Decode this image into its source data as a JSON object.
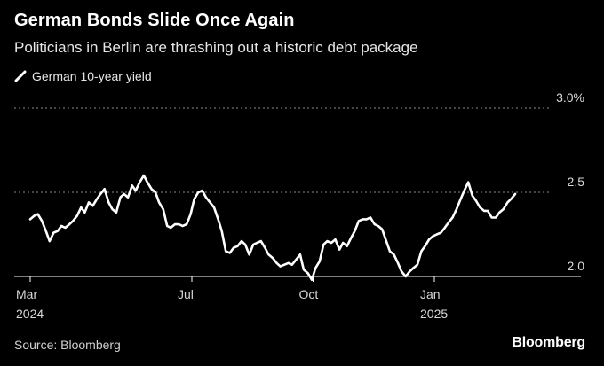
{
  "header": {
    "title": "German Bonds Slide Once Again",
    "subtitle": "Politicians in Berlin are thrashing out a historic debt package"
  },
  "footer": {
    "source": "Source: Bloomberg",
    "brand": "Bloomberg"
  },
  "colors": {
    "background": "#000000",
    "line": "#ffffff",
    "grid": "#8a8a8a"
  },
  "chart_data": {
    "type": "line",
    "title": "German Bonds Slide Once Again",
    "subtitle": "Politicians in Berlin are thrashing out a historic debt package",
    "xlabel": "",
    "ylabel": "",
    "ylim": [
      2.0,
      3.0
    ],
    "xlim": [
      0,
      12.8
    ],
    "grid": true,
    "legend_position": "top-left",
    "y_ticks": [
      {
        "value": 3.0,
        "label": "3.0%"
      },
      {
        "value": 2.5,
        "label": "2.5"
      },
      {
        "value": 2.0,
        "label": "2.0"
      }
    ],
    "x_ticks": [
      {
        "value": 0,
        "label": "Mar",
        "year": "2024"
      },
      {
        "value": 4,
        "label": "Jul",
        "year": ""
      },
      {
        "value": 7,
        "label": "Oct",
        "year": ""
      },
      {
        "value": 10,
        "label": "Jan",
        "year": "2025"
      }
    ],
    "series": [
      {
        "name": "German 10-year yield",
        "x": [
          0.0,
          0.1,
          0.19,
          0.29,
          0.39,
          0.48,
          0.58,
          0.68,
          0.77,
          0.87,
          0.97,
          1.06,
          1.16,
          1.26,
          1.35,
          1.45,
          1.55,
          1.65,
          1.74,
          1.84,
          1.94,
          2.03,
          2.13,
          2.23,
          2.32,
          2.42,
          2.52,
          2.61,
          2.71,
          2.81,
          2.9,
          3.0,
          3.1,
          3.19,
          3.29,
          3.39,
          3.48,
          3.58,
          3.68,
          3.77,
          3.87,
          3.97,
          4.06,
          4.16,
          4.26,
          4.35,
          4.45,
          4.55,
          4.65,
          4.74,
          4.84,
          4.94,
          5.03,
          5.13,
          5.23,
          5.32,
          5.42,
          5.52,
          5.61,
          5.71,
          5.81,
          5.9,
          6.0,
          6.1,
          6.19,
          6.29,
          6.39,
          6.48,
          6.58,
          6.68,
          6.77,
          6.87,
          6.97,
          7.06,
          7.16,
          7.26,
          7.35,
          7.45,
          7.55,
          7.65,
          7.74,
          7.84,
          7.94,
          8.03,
          8.13,
          8.23,
          8.32,
          8.42,
          8.52,
          8.61,
          8.71,
          8.81,
          8.9,
          9.0,
          9.1,
          9.19,
          9.29,
          9.39,
          9.48,
          9.58,
          9.68,
          9.77,
          9.87,
          9.97,
          10.06,
          10.16,
          10.26,
          10.35,
          10.45,
          10.55,
          10.65,
          10.74,
          10.84,
          10.94,
          11.03,
          11.13,
          11.23,
          11.32,
          11.42,
          11.52,
          11.61,
          11.71,
          11.81,
          11.9,
          12.0
        ],
        "values": [
          2.34,
          2.36,
          2.37,
          2.33,
          2.27,
          2.21,
          2.26,
          2.27,
          2.3,
          2.29,
          2.31,
          2.33,
          2.36,
          2.41,
          2.38,
          2.44,
          2.42,
          2.46,
          2.49,
          2.52,
          2.44,
          2.4,
          2.38,
          2.47,
          2.49,
          2.47,
          2.54,
          2.51,
          2.56,
          2.6,
          2.56,
          2.52,
          2.5,
          2.44,
          2.4,
          2.3,
          2.29,
          2.31,
          2.31,
          2.3,
          2.31,
          2.37,
          2.46,
          2.5,
          2.51,
          2.47,
          2.44,
          2.41,
          2.34,
          2.27,
          2.15,
          2.14,
          2.17,
          2.18,
          2.21,
          2.19,
          2.13,
          2.19,
          2.2,
          2.21,
          2.17,
          2.13,
          2.11,
          2.08,
          2.06,
          2.07,
          2.08,
          2.07,
          2.1,
          2.13,
          2.04,
          2.02,
          1.98,
          2.05,
          2.09,
          2.19,
          2.21,
          2.2,
          2.22,
          2.16,
          2.2,
          2.18,
          2.23,
          2.27,
          2.33,
          2.34,
          2.34,
          2.35,
          2.31,
          2.3,
          2.28,
          2.21,
          2.15,
          2.13,
          2.08,
          2.03,
          2.0,
          2.03,
          2.05,
          2.07,
          2.15,
          2.18,
          2.22,
          2.24,
          2.25,
          2.26,
          2.29,
          2.32,
          2.35,
          2.4,
          2.46,
          2.51,
          2.56,
          2.48,
          2.45,
          2.41,
          2.39,
          2.39,
          2.35,
          2.35,
          2.38,
          2.4,
          2.44,
          2.46,
          2.49
        ]
      }
    ]
  }
}
